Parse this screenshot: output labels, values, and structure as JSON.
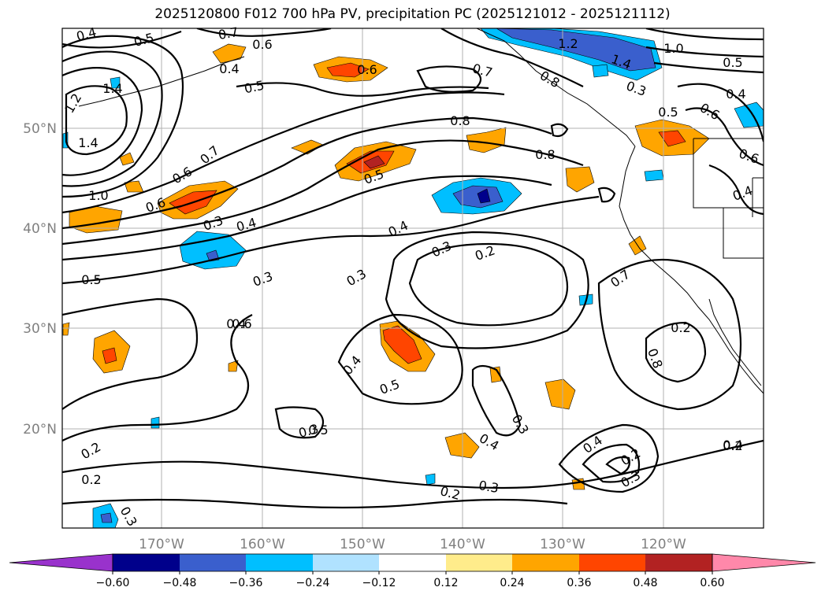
{
  "title": "2025120800 F012 700 hPa PV, precipitation PC (2025121012 - 2025121112)",
  "axes": {
    "lat_labels": [
      "50°N",
      "40°N",
      "30°N",
      "20°N"
    ],
    "lon_labels": [
      "170°W",
      "160°W",
      "150°W",
      "140°W",
      "130°W",
      "120°W"
    ]
  },
  "colorbar": {
    "colors": [
      "#9932CC",
      "#00008B",
      "#3A5FCD",
      "#00BFFF",
      "#B0E2FF",
      "#FFFFFF",
      "#FFEC8B",
      "#FFA500",
      "#FF4500",
      "#B22222",
      "#FF88AA"
    ],
    "tick_labels": [
      "−0.60",
      "−0.48",
      "−0.36",
      "−0.24",
      "−0.12",
      "0.12",
      "0.24",
      "0.36",
      "0.48",
      "0.60"
    ]
  },
  "contour_labels": [
    "0.4",
    "0.5",
    "0.7",
    "0.6",
    "0.4",
    "0.5",
    "0.6",
    "1.2",
    "1.4",
    "1.4",
    "0.7",
    "0.6",
    "0.8",
    "1.0",
    "0.6",
    "0.3",
    "0.4",
    "0.5",
    "0.5",
    "0.7",
    "0.8",
    "0.8",
    "0.3",
    "0.4",
    "0.3",
    "0.2",
    "0.3",
    "0.4",
    "0.4",
    "0.5",
    "0.3",
    "0.4",
    "0.2",
    "0.3",
    "0.2",
    "0.2",
    "0.3",
    "0.4",
    "0.3",
    "0.2",
    "0.8",
    "0.7",
    "1.2",
    "1.4",
    "1.0",
    "0.5",
    "0.3",
    "0.4",
    "0.6",
    "0.5",
    "0.6",
    "0.4",
    "0.2",
    "0.3",
    "0.4",
    "0.6",
    "0.5",
    "0.2"
  ]
}
